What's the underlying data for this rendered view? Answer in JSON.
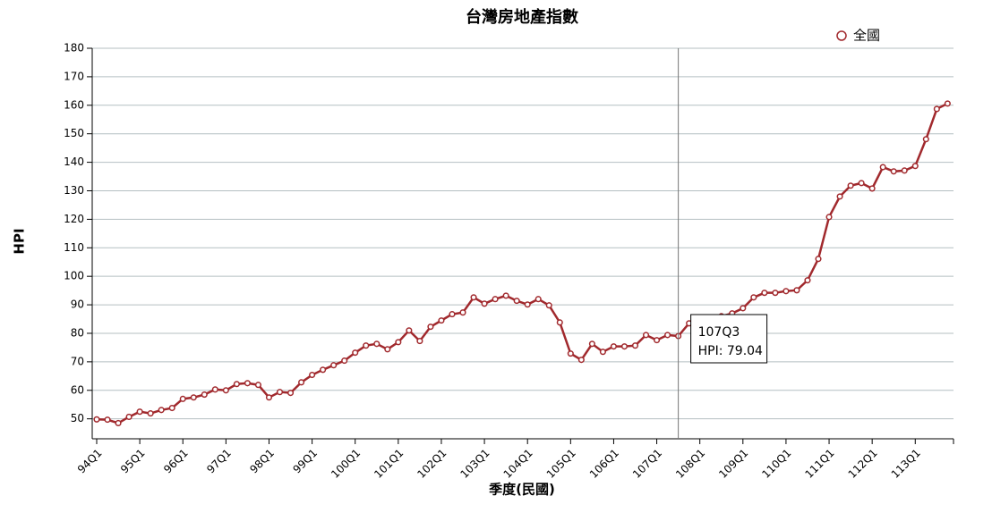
{
  "chart_data": {
    "type": "line",
    "title": "台灣房地產指數",
    "x_label": "季度(民國)",
    "y_label": "HPI",
    "categories": [
      "94Q1",
      null,
      null,
      null,
      "95Q1",
      null,
      null,
      null,
      "96Q1",
      null,
      null,
      null,
      "97Q1",
      null,
      null,
      null,
      "98Q1",
      null,
      null,
      null,
      "99Q1",
      null,
      null,
      null,
      "100Q1",
      null,
      null,
      null,
      "101Q1",
      null,
      null,
      null,
      "102Q1",
      null,
      null,
      null,
      "103Q1",
      null,
      null,
      null,
      "104Q1",
      null,
      null,
      null,
      "105Q1",
      null,
      null,
      null,
      "106Q1",
      null,
      null,
      null,
      "107Q1",
      null,
      null,
      null,
      "108Q1",
      null,
      null,
      null,
      "109Q1",
      null,
      null,
      null,
      "110Q1",
      null,
      null,
      null,
      "111Q1",
      null,
      null,
      null,
      "112Q1",
      null,
      null,
      null,
      "113Q1",
      null,
      null,
      null
    ],
    "series": [
      {
        "name": "全國",
        "color": "#a1292d",
        "values": [
          49.8,
          49.7,
          48.5,
          50.7,
          52.5,
          51.9,
          53.1,
          53.8,
          57.0,
          57.5,
          58.5,
          60.3,
          60.0,
          62.2,
          62.5,
          61.9,
          57.5,
          59.4,
          59.1,
          62.8,
          65.4,
          67.2,
          68.8,
          70.4,
          73.2,
          75.7,
          76.3,
          74.4,
          76.9,
          81.0,
          77.3,
          82.3,
          84.5,
          86.7,
          87.3,
          92.6,
          90.4,
          92.0,
          93.2,
          91.4,
          90.1,
          92.0,
          89.8,
          83.8,
          72.9,
          70.7,
          76.3,
          73.5,
          75.4,
          75.4,
          75.7,
          79.4,
          77.6,
          79.4,
          79.04,
          83.5,
          84.5,
          85.5,
          86.0,
          87.0,
          88.8,
          92.6,
          94.2,
          94.2,
          94.8,
          95.1,
          98.6,
          106.1,
          120.8,
          128.0,
          131.8,
          132.7,
          130.8,
          138.3,
          136.8,
          137.1,
          138.7,
          148.1,
          158.7,
          160.6
        ]
      }
    ],
    "ylim": [
      43,
      180
    ],
    "yticks": [
      50,
      60,
      70,
      80,
      90,
      100,
      110,
      120,
      130,
      140,
      150,
      160,
      170,
      180
    ],
    "grid": true,
    "legend": "top-right",
    "tooltip": {
      "category": "107Q3",
      "value": 79.04,
      "value_label": "HPI: 79.04"
    }
  }
}
